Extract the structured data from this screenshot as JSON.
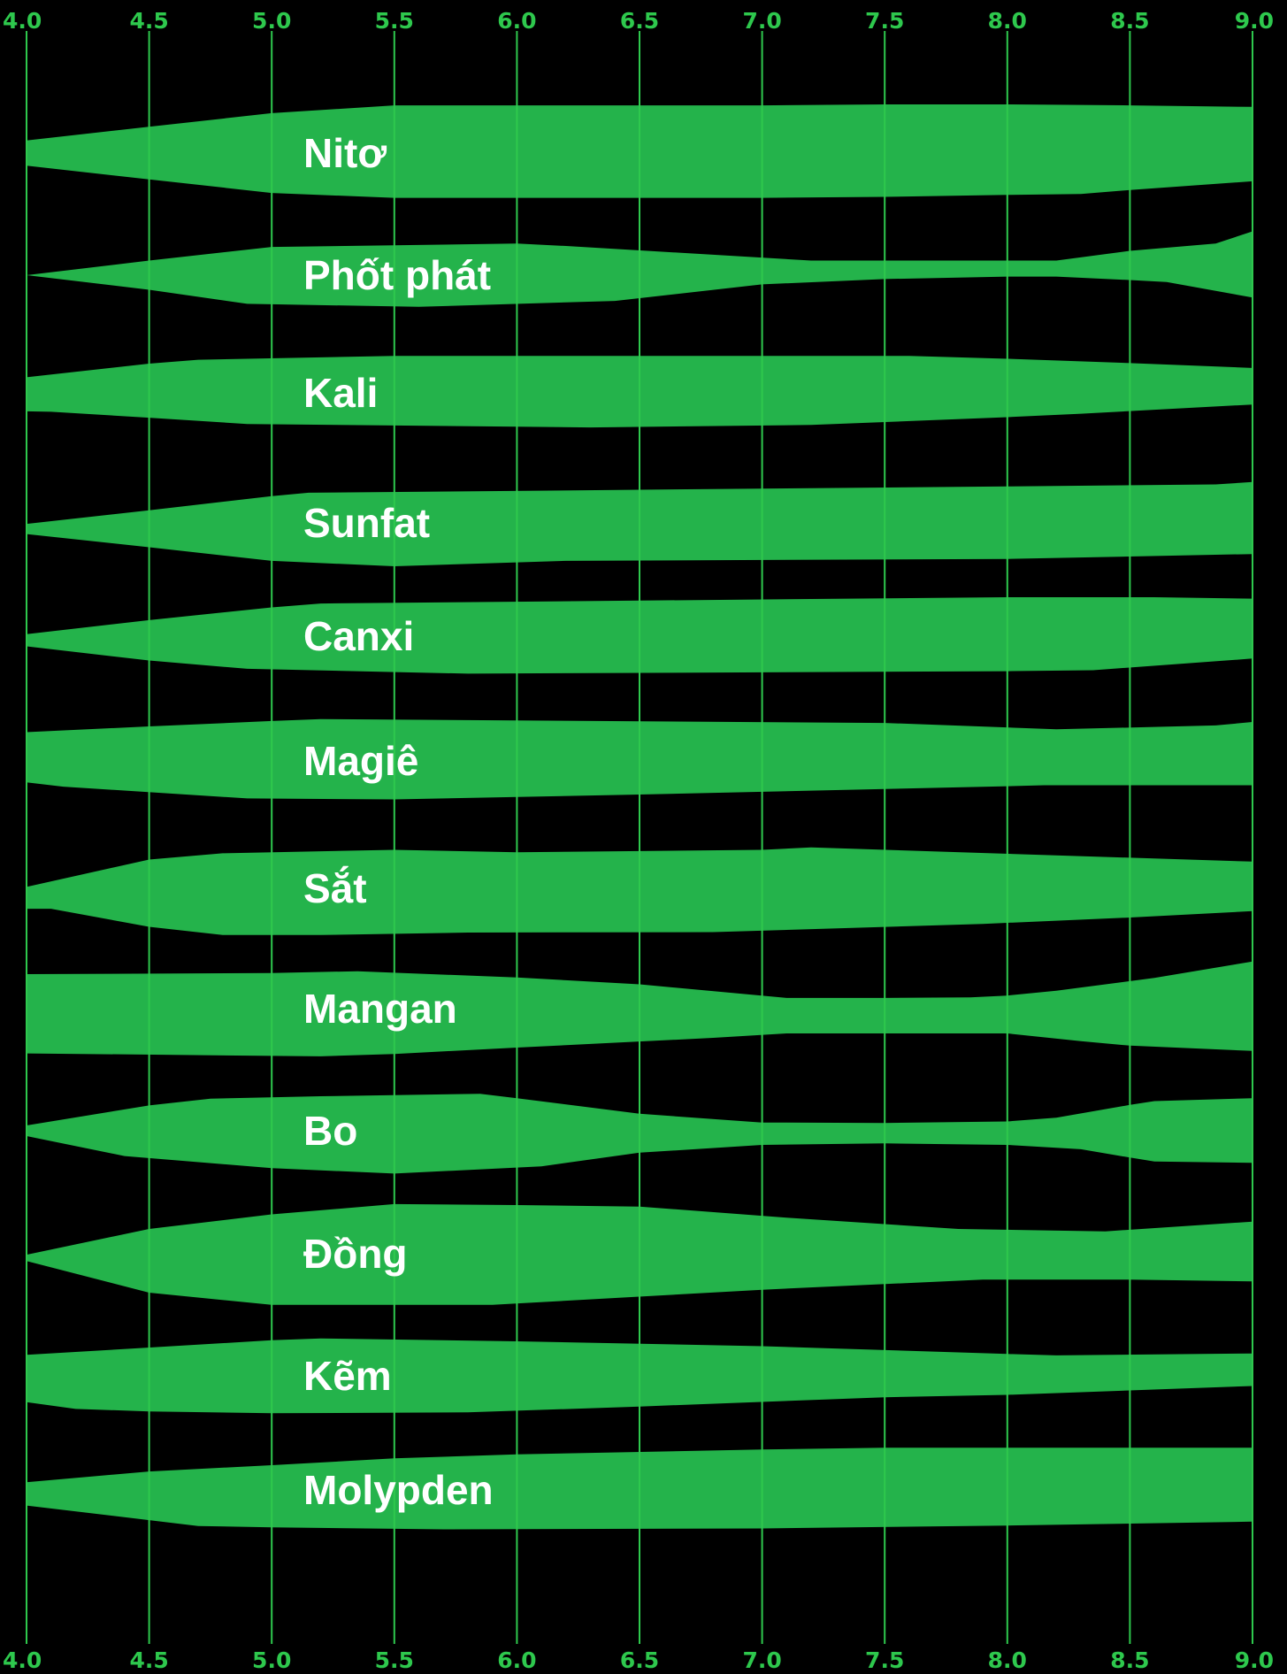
{
  "chart_data": {
    "type": "area",
    "description_of_encoding": "",
    "x_axis": {
      "min": 4.0,
      "max": 9.0,
      "ticks": [
        "4.0",
        "4.5",
        "5.0",
        "5.5",
        "6.0",
        "6.5",
        "7.0",
        "7.5",
        "8.0",
        "8.5",
        "9.0"
      ]
    },
    "grid": true,
    "colors": {
      "band": "#24b34b",
      "grid": "#2ec84d",
      "tick": "#2ec84d",
      "background": "#000000",
      "label": "#ffffff"
    },
    "series": [
      {
        "name": "Nitơ",
        "top": [
          [
            4.0,
            -0.26
          ],
          [
            4.5,
            -0.54
          ],
          [
            5.0,
            -0.82
          ],
          [
            5.5,
            -0.98
          ],
          [
            6.0,
            -0.98
          ],
          [
            7.0,
            -0.98
          ],
          [
            7.5,
            -1.0
          ],
          [
            8.0,
            -1.0
          ],
          [
            8.5,
            -0.98
          ],
          [
            9.0,
            -0.95
          ]
        ],
        "bottom": [
          [
            4.0,
            0.26
          ],
          [
            4.5,
            0.54
          ],
          [
            5.0,
            0.82
          ],
          [
            5.5,
            0.92
          ],
          [
            6.0,
            0.92
          ],
          [
            7.0,
            0.92
          ],
          [
            7.5,
            0.9
          ],
          [
            8.0,
            0.86
          ],
          [
            8.3,
            0.84
          ],
          [
            8.5,
            0.76
          ],
          [
            9.0,
            0.58
          ]
        ]
      },
      {
        "name": "Phốt phát",
        "top": [
          [
            4.0,
            0.0
          ],
          [
            4.5,
            -0.3
          ],
          [
            5.0,
            -0.58
          ],
          [
            6.0,
            -0.65
          ],
          [
            6.2,
            -0.6
          ],
          [
            7.2,
            -0.3
          ],
          [
            8.2,
            -0.3
          ],
          [
            8.5,
            -0.5
          ],
          [
            8.85,
            -0.65
          ],
          [
            9.0,
            -0.9
          ]
        ],
        "bottom": [
          [
            4.0,
            0.0
          ],
          [
            4.5,
            0.3
          ],
          [
            4.9,
            0.59
          ],
          [
            5.6,
            0.65
          ],
          [
            6.4,
            0.53
          ],
          [
            7.0,
            0.19
          ],
          [
            7.5,
            0.08
          ],
          [
            8.0,
            0.03
          ],
          [
            8.2,
            0.03
          ],
          [
            8.5,
            0.1
          ],
          [
            8.65,
            0.14
          ],
          [
            9.0,
            0.46
          ]
        ]
      },
      {
        "name": "Kali",
        "top": [
          [
            4.0,
            -0.32
          ],
          [
            4.5,
            -0.6
          ],
          [
            4.7,
            -0.68
          ],
          [
            5.5,
            -0.76
          ],
          [
            7.6,
            -0.76
          ],
          [
            8.0,
            -0.7
          ],
          [
            8.5,
            -0.61
          ],
          [
            9.0,
            -0.51
          ]
        ],
        "bottom": [
          [
            4.0,
            0.38
          ],
          [
            4.1,
            0.39
          ],
          [
            4.5,
            0.51
          ],
          [
            4.9,
            0.64
          ],
          [
            5.5,
            0.67
          ],
          [
            6.3,
            0.71
          ],
          [
            7.2,
            0.66
          ],
          [
            8.0,
            0.5
          ],
          [
            8.3,
            0.43
          ],
          [
            9.0,
            0.24
          ]
        ]
      },
      {
        "name": "Sunfat",
        "top": [
          [
            4.0,
            0.02
          ],
          [
            4.5,
            -0.26
          ],
          [
            5.0,
            -0.55
          ],
          [
            5.15,
            -0.62
          ],
          [
            8.0,
            -0.75
          ],
          [
            8.85,
            -0.79
          ],
          [
            9.0,
            -0.84
          ]
        ],
        "bottom": [
          [
            4.0,
            0.23
          ],
          [
            4.5,
            0.5
          ],
          [
            5.0,
            0.78
          ],
          [
            5.5,
            0.89
          ],
          [
            6.2,
            0.78
          ],
          [
            8.0,
            0.74
          ],
          [
            9.0,
            0.64
          ]
        ]
      },
      {
        "name": "Canxi",
        "top": [
          [
            4.0,
            -0.04
          ],
          [
            4.5,
            -0.33
          ],
          [
            5.0,
            -0.59
          ],
          [
            5.2,
            -0.67
          ],
          [
            8.0,
            -0.8
          ],
          [
            8.6,
            -0.8
          ],
          [
            9.0,
            -0.77
          ]
        ],
        "bottom": [
          [
            4.0,
            0.21
          ],
          [
            4.5,
            0.5
          ],
          [
            4.9,
            0.67
          ],
          [
            5.8,
            0.77
          ],
          [
            8.0,
            0.72
          ],
          [
            8.35,
            0.7
          ],
          [
            9.0,
            0.46
          ]
        ]
      },
      {
        "name": "Magiê",
        "top": [
          [
            4.0,
            -0.59
          ],
          [
            4.5,
            -0.71
          ],
          [
            5.0,
            -0.82
          ],
          [
            5.2,
            -0.86
          ],
          [
            7.5,
            -0.78
          ],
          [
            8.2,
            -0.65
          ],
          [
            8.85,
            -0.73
          ],
          [
            9.0,
            -0.8
          ]
        ],
        "bottom": [
          [
            4.0,
            0.44
          ],
          [
            4.15,
            0.53
          ],
          [
            4.9,
            0.77
          ],
          [
            5.5,
            0.79
          ],
          [
            6.5,
            0.69
          ],
          [
            8.0,
            0.52
          ],
          [
            8.15,
            0.5
          ],
          [
            9.0,
            0.5
          ]
        ]
      },
      {
        "name": "Sắt",
        "top": [
          [
            4.0,
            -0.03
          ],
          [
            4.5,
            -0.59
          ],
          [
            4.8,
            -0.72
          ],
          [
            5.5,
            -0.79
          ],
          [
            6.0,
            -0.74
          ],
          [
            7.0,
            -0.79
          ],
          [
            7.2,
            -0.84
          ],
          [
            8.5,
            -0.63
          ],
          [
            9.0,
            -0.55
          ]
        ],
        "bottom": [
          [
            4.0,
            0.42
          ],
          [
            4.1,
            0.42
          ],
          [
            4.5,
            0.79
          ],
          [
            4.8,
            0.96
          ],
          [
            5.2,
            0.96
          ],
          [
            5.8,
            0.91
          ],
          [
            6.8,
            0.9
          ],
          [
            7.9,
            0.73
          ],
          [
            8.5,
            0.6
          ],
          [
            9.0,
            0.47
          ]
        ]
      },
      {
        "name": "Mangan",
        "top": [
          [
            4.0,
            -0.71
          ],
          [
            5.0,
            -0.73
          ],
          [
            5.35,
            -0.77
          ],
          [
            6.0,
            -0.64
          ],
          [
            6.5,
            -0.5
          ],
          [
            7.1,
            -0.22
          ],
          [
            7.5,
            -0.22
          ],
          [
            7.85,
            -0.23
          ],
          [
            8.0,
            -0.27
          ],
          [
            8.2,
            -0.37
          ],
          [
            8.6,
            -0.63
          ],
          [
            9.0,
            -0.97
          ]
        ],
        "bottom": [
          [
            4.0,
            0.92
          ],
          [
            5.2,
            0.98
          ],
          [
            5.5,
            0.93
          ],
          [
            6.0,
            0.8
          ],
          [
            6.8,
            0.6
          ],
          [
            7.1,
            0.51
          ],
          [
            8.0,
            0.51
          ],
          [
            8.3,
            0.67
          ],
          [
            8.5,
            0.76
          ],
          [
            9.0,
            0.87
          ]
        ]
      },
      {
        "name": "Bo",
        "top": [
          [
            4.0,
            -0.11
          ],
          [
            4.5,
            -0.52
          ],
          [
            4.75,
            -0.66
          ],
          [
            5.2,
            -0.71
          ],
          [
            5.85,
            -0.76
          ],
          [
            6.0,
            -0.67
          ],
          [
            6.5,
            -0.35
          ],
          [
            7.0,
            -0.17
          ],
          [
            7.5,
            -0.16
          ],
          [
            8.0,
            -0.19
          ],
          [
            8.2,
            -0.27
          ],
          [
            8.5,
            -0.53
          ],
          [
            8.6,
            -0.61
          ],
          [
            9.0,
            -0.67
          ]
        ],
        "bottom": [
          [
            4.0,
            0.11
          ],
          [
            4.4,
            0.52
          ],
          [
            5.0,
            0.77
          ],
          [
            5.5,
            0.88
          ],
          [
            6.1,
            0.73
          ],
          [
            6.5,
            0.45
          ],
          [
            7.0,
            0.29
          ],
          [
            7.5,
            0.26
          ],
          [
            8.0,
            0.29
          ],
          [
            8.3,
            0.38
          ],
          [
            8.5,
            0.55
          ],
          [
            8.6,
            0.63
          ],
          [
            9.0,
            0.66
          ]
        ]
      },
      {
        "name": "Đồng",
        "top": [
          [
            4.0,
            0.02
          ],
          [
            4.5,
            -0.51
          ],
          [
            5.0,
            -0.81
          ],
          [
            5.5,
            -1.02
          ],
          [
            6.0,
            -1.0
          ],
          [
            6.5,
            -0.97
          ],
          [
            7.1,
            -0.74
          ],
          [
            7.8,
            -0.51
          ],
          [
            8.4,
            -0.46
          ],
          [
            9.0,
            -0.66
          ]
        ],
        "bottom": [
          [
            4.0,
            0.15
          ],
          [
            4.5,
            0.8
          ],
          [
            5.0,
            1.05
          ],
          [
            5.9,
            1.05
          ],
          [
            7.0,
            0.74
          ],
          [
            7.9,
            0.53
          ],
          [
            8.5,
            0.53
          ],
          [
            9.0,
            0.57
          ]
        ]
      },
      {
        "name": "Kẽm",
        "top": [
          [
            4.0,
            -0.43
          ],
          [
            5.0,
            -0.73
          ],
          [
            5.2,
            -0.77
          ],
          [
            6.0,
            -0.71
          ],
          [
            7.0,
            -0.61
          ],
          [
            8.0,
            -0.45
          ],
          [
            8.2,
            -0.42
          ],
          [
            9.0,
            -0.46
          ]
        ],
        "bottom": [
          [
            4.0,
            0.54
          ],
          [
            4.2,
            0.68
          ],
          [
            4.5,
            0.73
          ],
          [
            5.0,
            0.77
          ],
          [
            5.8,
            0.75
          ],
          [
            6.5,
            0.63
          ],
          [
            7.5,
            0.44
          ],
          [
            8.0,
            0.39
          ],
          [
            9.0,
            0.21
          ]
        ]
      },
      {
        "name": "Molypden",
        "top": [
          [
            4.0,
            -0.16
          ],
          [
            4.5,
            -0.38
          ],
          [
            5.0,
            -0.51
          ],
          [
            5.5,
            -0.65
          ],
          [
            6.0,
            -0.73
          ],
          [
            7.0,
            -0.83
          ],
          [
            7.5,
            -0.87
          ],
          [
            9.0,
            -0.87
          ]
        ],
        "bottom": [
          [
            4.0,
            0.32
          ],
          [
            4.7,
            0.74
          ],
          [
            5.0,
            0.77
          ],
          [
            5.7,
            0.81
          ],
          [
            7.0,
            0.79
          ],
          [
            8.0,
            0.73
          ],
          [
            9.0,
            0.65
          ]
        ]
      }
    ]
  }
}
